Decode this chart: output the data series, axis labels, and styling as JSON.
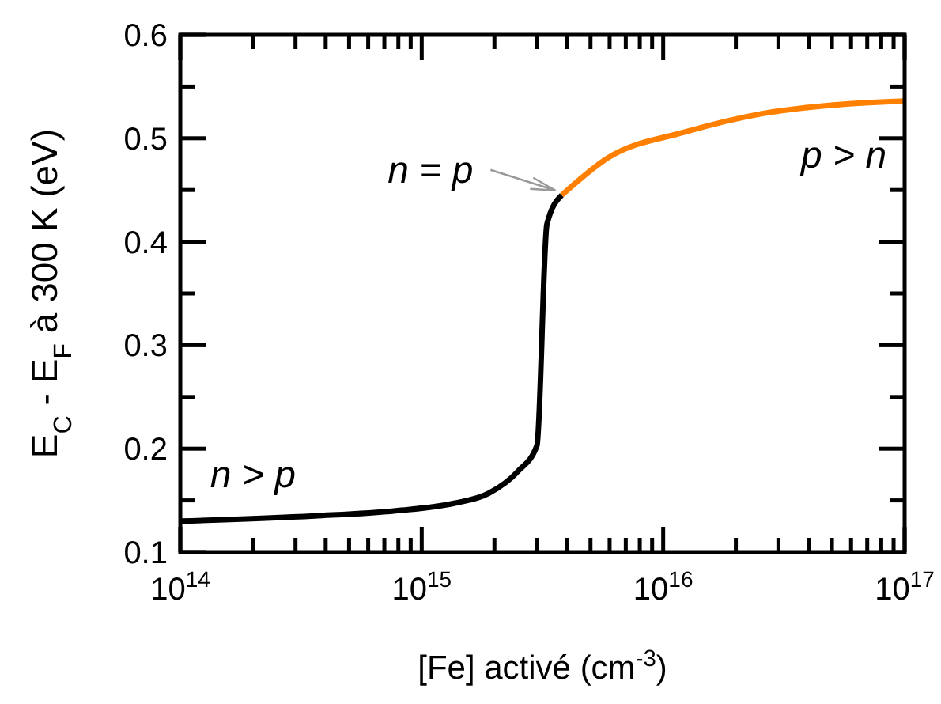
{
  "chart_data": {
    "type": "line",
    "xlabel": "[Fe] activé (cm$^{-3}$)",
    "ylabel": "E$_{C}$ - E$_{F}$ à 300 K (eV)",
    "log": "x",
    "xlim": [
      100000000000000.0,
      1e+17
    ],
    "xticks": [
      {
        "value": 100000000000000.0,
        "label": "10$^{14}$"
      },
      {
        "value": 200000000000000.0,
        "label": null
      },
      {
        "value": 300000000000000.0,
        "label": null
      },
      {
        "value": 400000000000000.0,
        "label": null
      },
      {
        "value": 500000000000000.0,
        "label": null
      },
      {
        "value": 600000000000000.0,
        "label": null
      },
      {
        "value": 700000000000000.0,
        "label": null
      },
      {
        "value": 800000000000000.0,
        "label": null
      },
      {
        "value": 900000000000000.0,
        "label": null
      },
      {
        "value": 1000000000000000.0,
        "label": "10$^{15}$"
      },
      {
        "value": 2000000000000000.0,
        "label": null
      },
      {
        "value": 3000000000000000.0,
        "label": null
      },
      {
        "value": 4000000000000000.0,
        "label": null
      },
      {
        "value": 5000000000000000.0,
        "label": null
      },
      {
        "value": 6000000000000000.0,
        "label": null
      },
      {
        "value": 7000000000000000.0,
        "label": null
      },
      {
        "value": 8000000000000000.0,
        "label": null
      },
      {
        "value": 9000000000000000.0,
        "label": null
      },
      {
        "value": 1e+16,
        "label": "10$^{16}$"
      },
      {
        "value": 2e+16,
        "label": null
      },
      {
        "value": 3e+16,
        "label": null
      },
      {
        "value": 4e+16,
        "label": null
      },
      {
        "value": 5e+16,
        "label": null
      },
      {
        "value": 6e+16,
        "label": null
      },
      {
        "value": 7e+16,
        "label": null
      },
      {
        "value": 8e+16,
        "label": null
      },
      {
        "value": 9e+16,
        "label": null
      },
      {
        "value": 1e+17,
        "label": "10$^{17}$"
      }
    ],
    "ylim": [
      0.1,
      0.6
    ],
    "yticks": [
      0.1,
      {
        "value": 0.15,
        "label": null
      },
      0.2,
      {
        "value": 0.25,
        "label": null
      },
      0.3,
      {
        "value": 0.35,
        "label": null
      },
      0.4,
      {
        "value": 0.45,
        "label": null
      },
      0.5,
      {
        "value": 0.55,
        "label": null
      },
      0.6
    ],
    "grid": false,
    "marker": "none",
    "line_style": "solid",
    "series": [
      {
        "color": "#000000",
        "x": [
          100000000000000.0,
          360000000000000.0,
          780000000000000.0,
          1350000000000000.0,
          1900000000000000.0,
          2500000000000000.0,
          3000000000000000.0,
          3300000000000000.0,
          3800000000000000.0
        ],
        "values": [
          0.13,
          0.135,
          0.14,
          0.147,
          0.157,
          0.178,
          0.203,
          0.417,
          0.445
        ]
      },
      {
        "color": "#ff8000",
        "x": [
          3800000000000000.0,
          5900000000000000.0,
          1.23e+16,
          2.6e+16,
          5.6e+16,
          1e+17
        ],
        "values": [
          0.445,
          0.481,
          0.506,
          0.524,
          0.533,
          0.536
        ]
      }
    ],
    "annotations": [
      {
        "text": "n > p",
        "x": 200000000000000.0,
        "y": 0.132
      },
      {
        "text": "n = p",
        "x": 3800000000000000.0,
        "y": 0.445
      },
      {
        "text": "p > n",
        "x": 5.6e+16,
        "y": 0.533
      }
    ]
  }
}
